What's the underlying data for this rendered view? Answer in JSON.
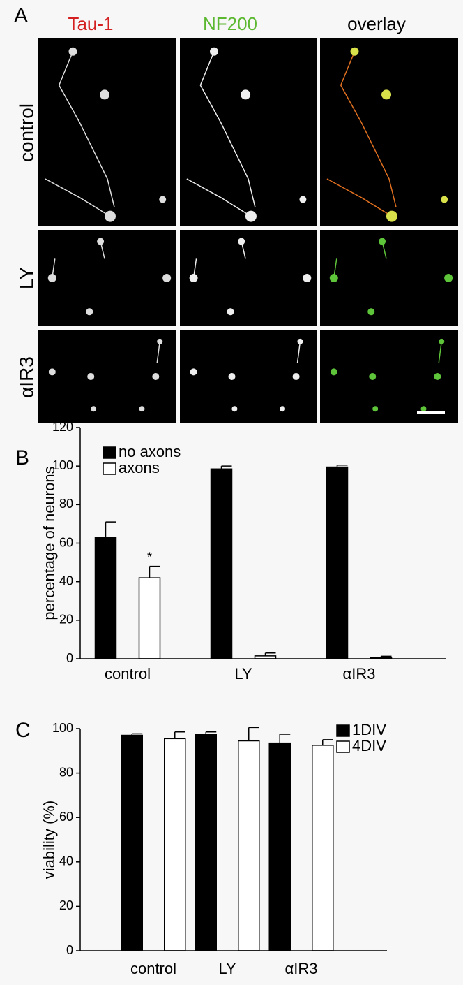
{
  "figure_a": {
    "label": "A",
    "columns": [
      "Tau-1",
      "NF200",
      "overlay"
    ],
    "rows": [
      "control",
      "LY",
      "αIR3"
    ]
  },
  "chart_data": [
    {
      "type": "bar",
      "panel_label": "B",
      "y_label": "percentage of neurons",
      "categories": [
        "control",
        "LY",
        "αIR3"
      ],
      "series": [
        {
          "name": "no axons",
          "color": "#000000",
          "values": [
            63,
            98.5,
            99.5
          ],
          "errors": [
            8,
            1.5,
            1
          ]
        },
        {
          "name": "axons",
          "color": "#ffffff",
          "values": [
            42,
            1.5,
            0.5
          ],
          "errors": [
            6,
            1.5,
            0.8
          ]
        }
      ],
      "annotation": "*",
      "ylim": [
        0,
        120
      ],
      "yticks": [
        0,
        20,
        40,
        60,
        80,
        100,
        120
      ],
      "legend": "top-left"
    },
    {
      "type": "bar",
      "panel_label": "C",
      "y_label": "viability (%)",
      "categories": [
        "control",
        "LY",
        "αIR3"
      ],
      "series": [
        {
          "name": "1DIV",
          "color": "#000000",
          "values": [
            97,
            97.5,
            93.5
          ],
          "errors": [
            0.7,
            1,
            4
          ]
        },
        {
          "name": "4DIV",
          "color": "#ffffff",
          "values": [
            95.5,
            94.5,
            92.5
          ],
          "errors": [
            3,
            6,
            2.5
          ]
        }
      ],
      "ylim": [
        0,
        100
      ],
      "yticks": [
        0,
        20,
        40,
        60,
        80,
        100
      ],
      "legend": "top-right"
    }
  ]
}
